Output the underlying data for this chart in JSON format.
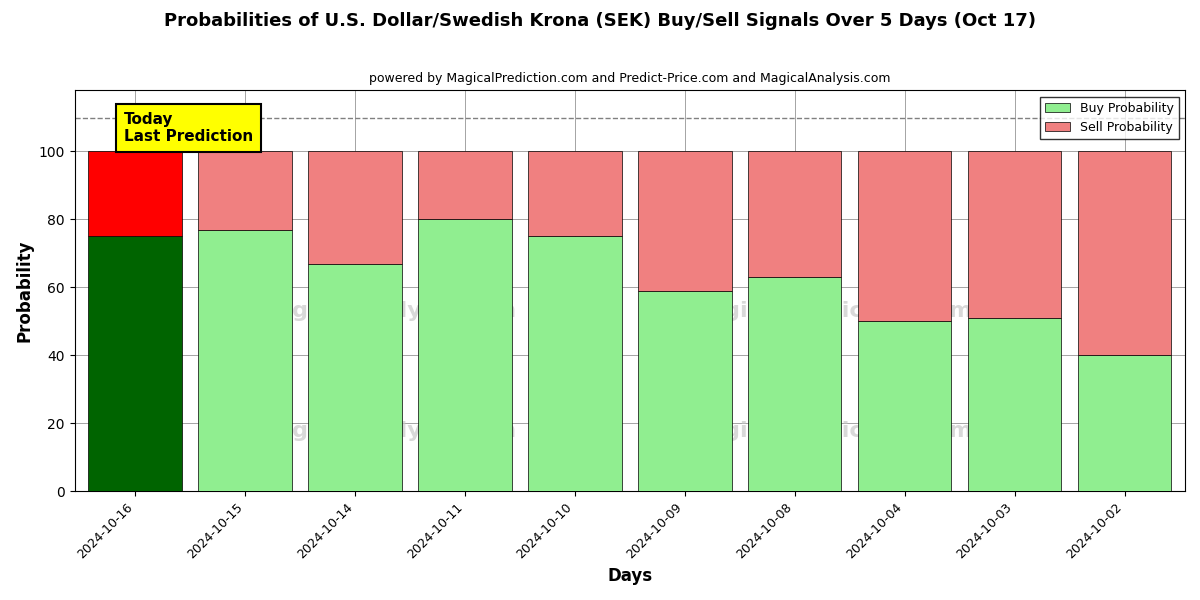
{
  "title": "Probabilities of U.S. Dollar/Swedish Krona (SEK) Buy/Sell Signals Over 5 Days (Oct 17)",
  "subtitle": "powered by MagicalPrediction.com and Predict-Price.com and MagicalAnalysis.com",
  "xlabel": "Days",
  "ylabel": "Probability",
  "categories": [
    "2024-10-16",
    "2024-10-15",
    "2024-10-14",
    "2024-10-11",
    "2024-10-10",
    "2024-10-09",
    "2024-10-08",
    "2024-10-04",
    "2024-10-03",
    "2024-10-02"
  ],
  "buy_values": [
    75,
    77,
    67,
    80,
    75,
    59,
    63,
    50,
    51,
    40
  ],
  "sell_values": [
    25,
    23,
    33,
    20,
    25,
    41,
    37,
    50,
    49,
    60
  ],
  "today_index": 0,
  "buy_color_today": "#006400",
  "sell_color_today": "#FF0000",
  "buy_color_normal": "#90EE90",
  "sell_color_normal": "#F08080",
  "today_box_color": "#FFFF00",
  "today_box_text": "Today\nLast Prediction",
  "dashed_line_y": 110,
  "ylim": [
    0,
    118
  ],
  "yticks": [
    0,
    20,
    40,
    60,
    80,
    100
  ],
  "legend_buy": "Buy Probability",
  "legend_sell": "Sell Probability",
  "fig_width": 12,
  "fig_height": 6
}
